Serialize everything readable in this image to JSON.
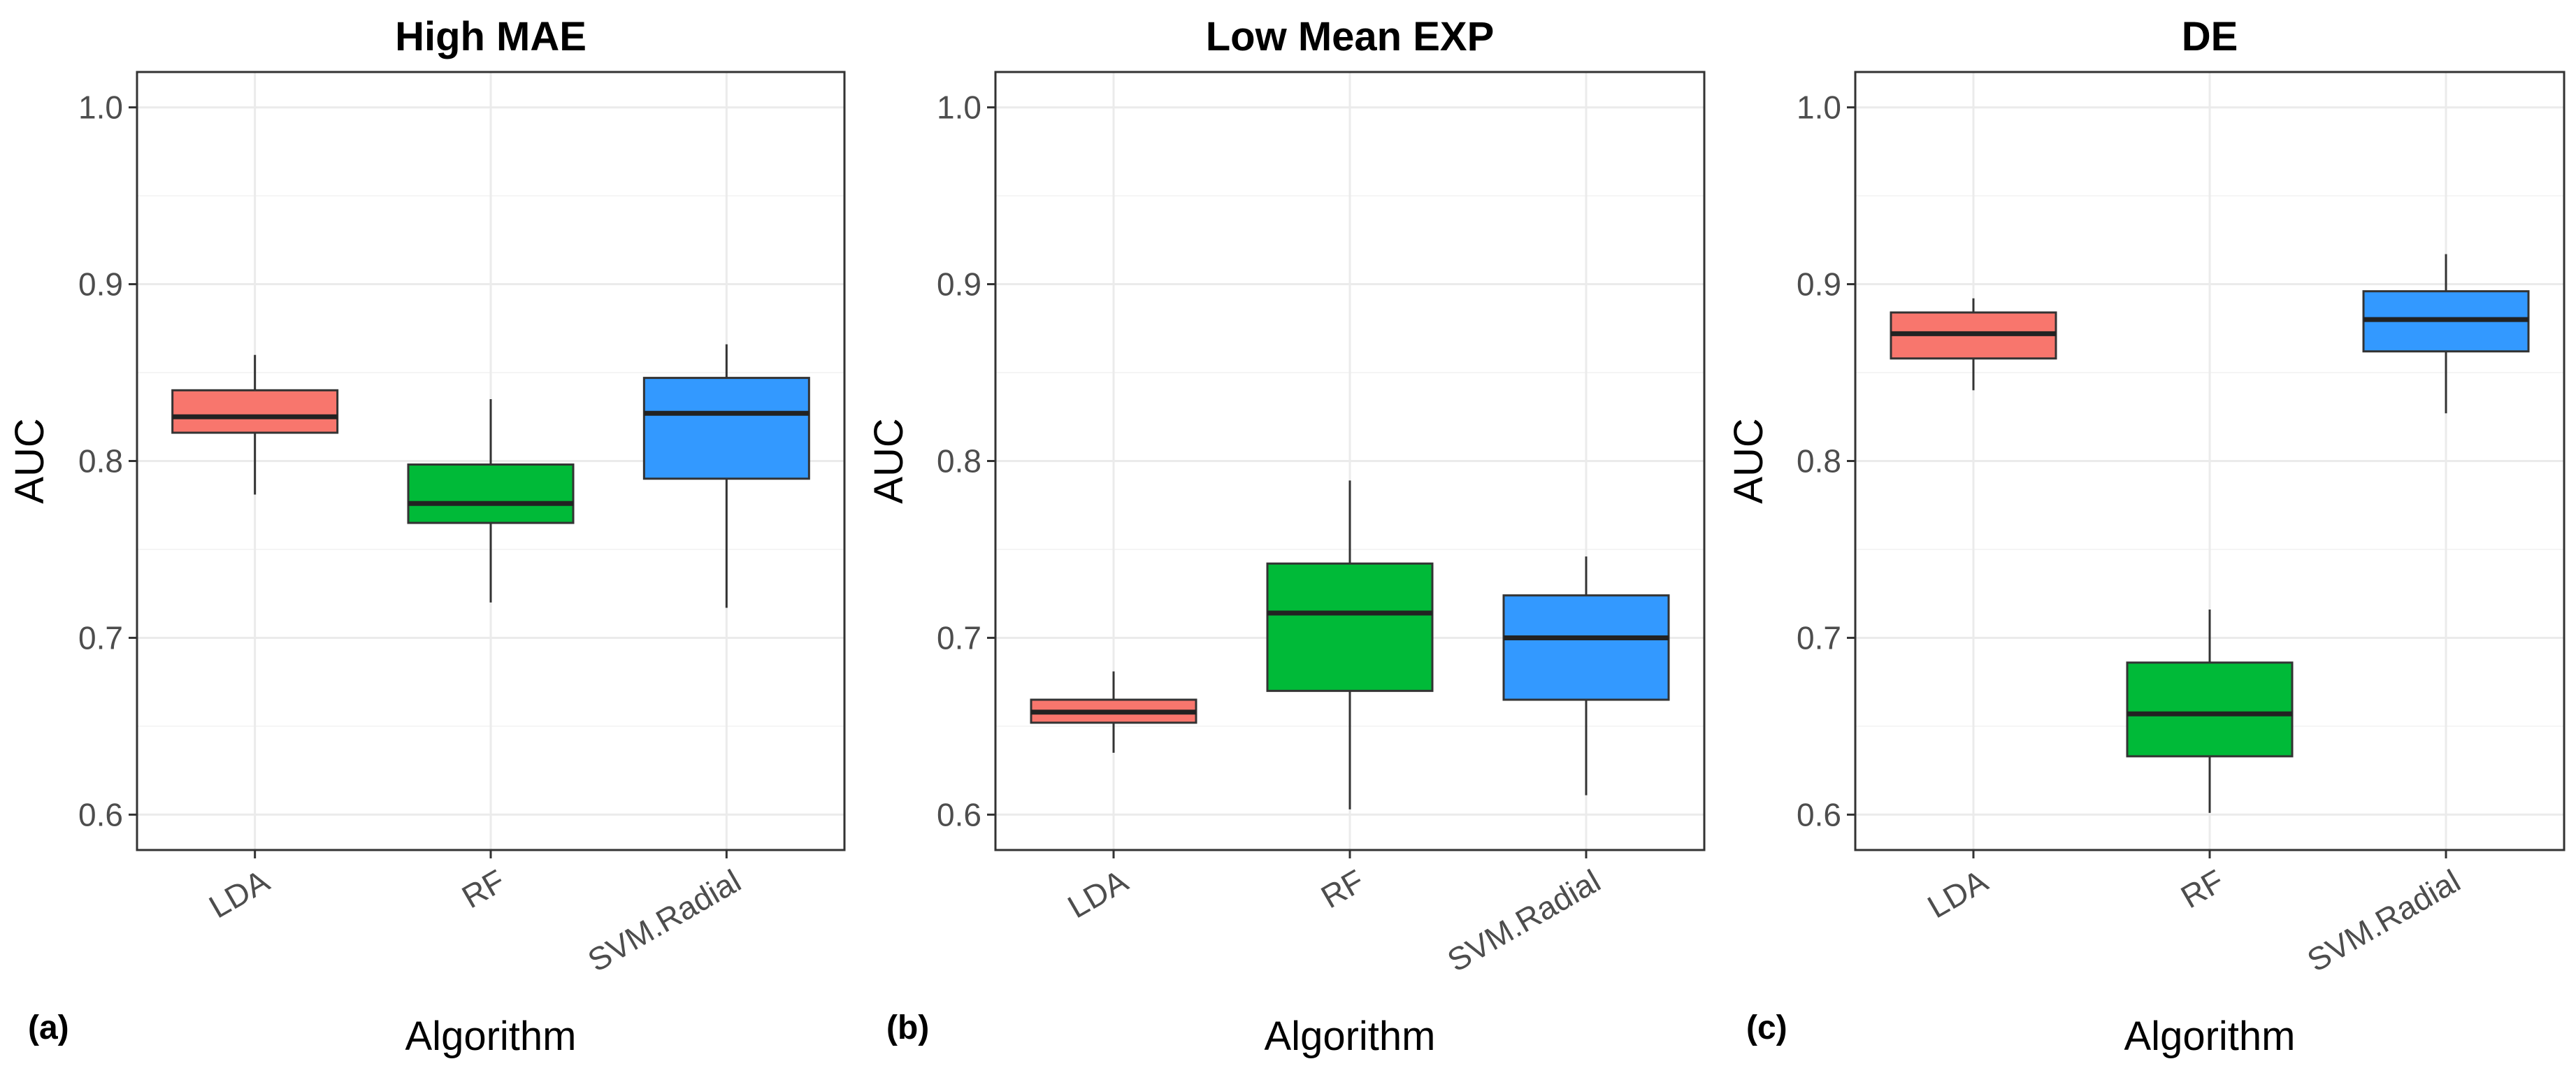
{
  "chart_data": [
    {
      "type": "box",
      "panel_label": "(a)",
      "title": "High MAE",
      "xlabel": "Algorithm",
      "ylabel": "AUC",
      "ylim": [
        0.58,
        1.02
      ],
      "yticks": [
        "0.6",
        "0.7",
        "0.8",
        "0.9",
        "1.0"
      ],
      "grid": true,
      "categories": [
        "LDA",
        "RF",
        "SVM.Radial"
      ],
      "boxes": [
        {
          "category": "LDA",
          "min": 0.781,
          "q1": 0.816,
          "median": 0.825,
          "q3": 0.84,
          "max": 0.86
        },
        {
          "category": "RF",
          "min": 0.72,
          "q1": 0.765,
          "median": 0.776,
          "q3": 0.798,
          "max": 0.835
        },
        {
          "category": "SVM.Radial",
          "min": 0.717,
          "q1": 0.79,
          "median": 0.827,
          "q3": 0.847,
          "max": 0.866
        }
      ]
    },
    {
      "type": "box",
      "panel_label": "(b)",
      "title": "Low Mean EXP",
      "xlabel": "Algorithm",
      "ylabel": "AUC",
      "ylim": [
        0.58,
        1.02
      ],
      "yticks": [
        "0.6",
        "0.7",
        "0.8",
        "0.9",
        "1.0"
      ],
      "grid": true,
      "categories": [
        "LDA",
        "RF",
        "SVM.Radial"
      ],
      "boxes": [
        {
          "category": "LDA",
          "min": 0.635,
          "q1": 0.652,
          "median": 0.658,
          "q3": 0.665,
          "max": 0.681
        },
        {
          "category": "RF",
          "min": 0.603,
          "q1": 0.67,
          "median": 0.714,
          "q3": 0.742,
          "max": 0.789
        },
        {
          "category": "SVM.Radial",
          "min": 0.611,
          "q1": 0.665,
          "median": 0.7,
          "q3": 0.724,
          "max": 0.746
        }
      ]
    },
    {
      "type": "box",
      "panel_label": "(c)",
      "title": "DE",
      "xlabel": "Algorithm",
      "ylabel": "AUC",
      "ylim": [
        0.58,
        1.02
      ],
      "yticks": [
        "0.6",
        "0.7",
        "0.8",
        "0.9",
        "1.0"
      ],
      "grid": true,
      "categories": [
        "LDA",
        "RF",
        "SVM.Radial"
      ],
      "boxes": [
        {
          "category": "LDA",
          "min": 0.84,
          "q1": 0.858,
          "median": 0.872,
          "q3": 0.884,
          "max": 0.892
        },
        {
          "category": "RF",
          "min": 0.601,
          "q1": 0.633,
          "median": 0.657,
          "q3": 0.686,
          "max": 0.716
        },
        {
          "category": "SVM.Radial",
          "min": 0.827,
          "q1": 0.862,
          "median": 0.88,
          "q3": 0.896,
          "max": 0.917
        }
      ]
    }
  ],
  "colors": {
    "LDA": "#f8766d",
    "RF": "#00ba38",
    "SVM.Radial": "#3399ff",
    "box_outline": "#333333",
    "median_line": "#222222",
    "panel_border": "#333333",
    "grid_major": "#ebebeb",
    "grid_minor": "#f5f5f5"
  }
}
